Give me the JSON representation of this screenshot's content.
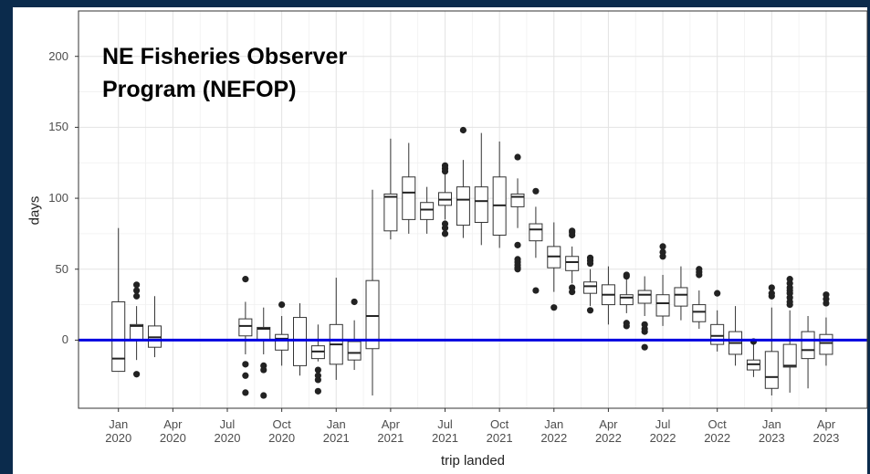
{
  "chart_data": {
    "type": "box",
    "annotation": "NE Fisheries Observer Program (NEFOP)",
    "xlabel": "trip landed",
    "ylabel": "days",
    "ylim": [
      -48,
      232
    ],
    "yticks": [
      0,
      50,
      100,
      150,
      200
    ],
    "xlim": [
      "2019-10-25",
      "2023-06-09"
    ],
    "xticks": [
      {
        "value": "2020-01",
        "label": "Jan\n2020"
      },
      {
        "value": "2020-04",
        "label": "Apr\n2020"
      },
      {
        "value": "2020-07",
        "label": "Jul\n2020"
      },
      {
        "value": "2020-10",
        "label": "Oct\n2020"
      },
      {
        "value": "2021-01",
        "label": "Jan\n2021"
      },
      {
        "value": "2021-04",
        "label": "Apr\n2021"
      },
      {
        "value": "2021-07",
        "label": "Jul\n2021"
      },
      {
        "value": "2021-10",
        "label": "Oct\n2021"
      },
      {
        "value": "2022-01",
        "label": "Jan\n2022"
      },
      {
        "value": "2022-04",
        "label": "Apr\n2022"
      },
      {
        "value": "2022-07",
        "label": "Jul\n2022"
      },
      {
        "value": "2022-10",
        "label": "Oct\n2022"
      },
      {
        "value": "2023-01",
        "label": "Jan\n2023"
      },
      {
        "value": "2023-04",
        "label": "Apr\n2023"
      }
    ],
    "grid": true,
    "hline": 0,
    "hline_color": "#0000e0",
    "boxes": [
      {
        "x": "2020-01",
        "low": -22,
        "q1": -22,
        "median": -13,
        "q3": 27,
        "high": 79,
        "outliers": []
      },
      {
        "x": "2020-02",
        "low": -14,
        "q1": 0,
        "median": 10,
        "q3": 11,
        "high": 24,
        "outliers": [
          39,
          35,
          31,
          -24
        ]
      },
      {
        "x": "2020-03",
        "low": -12,
        "q1": -5,
        "median": 2,
        "q3": 10,
        "high": 31,
        "outliers": []
      },
      {
        "x": "2020-08",
        "low": -10,
        "q1": 3,
        "median": 10,
        "q3": 15,
        "high": 27,
        "outliers": [
          43,
          -17,
          -25,
          -37
        ]
      },
      {
        "x": "2020-09",
        "low": -10,
        "q1": 0,
        "median": 8,
        "q3": 9,
        "high": 23,
        "outliers": [
          -18,
          -21,
          -39
        ]
      },
      {
        "x": "2020-10",
        "low": -18,
        "q1": -7,
        "median": 1,
        "q3": 4,
        "high": 17,
        "outliers": [
          25
        ]
      },
      {
        "x": "2020-11",
        "low": -25,
        "q1": -18,
        "median": 0,
        "q3": 16,
        "high": 26,
        "outliers": []
      },
      {
        "x": "2020-12",
        "low": -15,
        "q1": -13,
        "median": -8,
        "q3": -4,
        "high": 11,
        "outliers": [
          -21,
          -25,
          -28,
          -36
        ]
      },
      {
        "x": "2021-01",
        "low": -28,
        "q1": -17,
        "median": -3,
        "q3": 11,
        "high": 44,
        "outliers": []
      },
      {
        "x": "2021-02",
        "low": -21,
        "q1": -14,
        "median": -9,
        "q3": -1,
        "high": 14,
        "outliers": [
          27
        ]
      },
      {
        "x": "2021-03",
        "low": -39,
        "q1": -6,
        "median": 17,
        "q3": 42,
        "high": 106,
        "outliers": []
      },
      {
        "x": "2021-04",
        "low": 71,
        "q1": 77,
        "median": 101,
        "q3": 103,
        "high": 142,
        "outliers": []
      },
      {
        "x": "2021-05",
        "low": 75,
        "q1": 85,
        "median": 104,
        "q3": 115,
        "high": 139,
        "outliers": []
      },
      {
        "x": "2021-06",
        "low": 75,
        "q1": 85,
        "median": 92,
        "q3": 97,
        "high": 108,
        "outliers": []
      },
      {
        "x": "2021-07",
        "low": 85,
        "q1": 95,
        "median": 99,
        "q3": 104,
        "high": 117,
        "outliers": [
          123,
          121,
          119,
          82,
          79,
          75
        ]
      },
      {
        "x": "2021-08",
        "low": 72,
        "q1": 81,
        "median": 99,
        "q3": 108,
        "high": 127,
        "outliers": [
          148
        ]
      },
      {
        "x": "2021-09",
        "low": 67,
        "q1": 83,
        "median": 98,
        "q3": 108,
        "high": 146,
        "outliers": []
      },
      {
        "x": "2021-10",
        "low": 65,
        "q1": 74,
        "median": 95,
        "q3": 115,
        "high": 140,
        "outliers": []
      },
      {
        "x": "2021-11",
        "low": 79,
        "q1": 94,
        "median": 101,
        "q3": 103,
        "high": 114,
        "outliers": [
          129,
          67,
          57,
          55,
          53,
          51,
          50
        ]
      },
      {
        "x": "2021-12",
        "low": 58,
        "q1": 70,
        "median": 78,
        "q3": 82,
        "high": 94,
        "outliers": [
          105,
          35
        ]
      },
      {
        "x": "2022-01",
        "low": 34,
        "q1": 51,
        "median": 59,
        "q3": 66,
        "high": 83,
        "outliers": [
          23
        ]
      },
      {
        "x": "2022-02",
        "low": 40,
        "q1": 49,
        "median": 55,
        "q3": 59,
        "high": 66,
        "outliers": [
          77,
          76,
          74,
          37,
          34
        ]
      },
      {
        "x": "2022-03",
        "low": 24,
        "q1": 33,
        "median": 38,
        "q3": 41,
        "high": 50,
        "outliers": [
          58,
          56,
          54,
          21
        ]
      },
      {
        "x": "2022-04",
        "low": 11,
        "q1": 25,
        "median": 32,
        "q3": 39,
        "high": 52,
        "outliers": []
      },
      {
        "x": "2022-05",
        "low": 19,
        "q1": 25,
        "median": 30,
        "q3": 32,
        "high": 43,
        "outliers": [
          46,
          45,
          12,
          10
        ]
      },
      {
        "x": "2022-06",
        "low": 17,
        "q1": 26,
        "median": 32,
        "q3": 35,
        "high": 45,
        "outliers": [
          11,
          8,
          6,
          -5
        ]
      },
      {
        "x": "2022-07",
        "low": 10,
        "q1": 17,
        "median": 26,
        "q3": 32,
        "high": 46,
        "outliers": [
          66,
          62,
          59
        ]
      },
      {
        "x": "2022-08",
        "low": 14,
        "q1": 24,
        "median": 32,
        "q3": 37,
        "high": 52,
        "outliers": []
      },
      {
        "x": "2022-09",
        "low": 8,
        "q1": 13,
        "median": 20,
        "q3": 25,
        "high": 35,
        "outliers": [
          50,
          48,
          46
        ]
      },
      {
        "x": "2022-10",
        "low": -8,
        "q1": -3,
        "median": 3,
        "q3": 11,
        "high": 21,
        "outliers": [
          33
        ]
      },
      {
        "x": "2022-11",
        "low": -18,
        "q1": -10,
        "median": -2,
        "q3": 6,
        "high": 24,
        "outliers": []
      },
      {
        "x": "2022-12",
        "low": -26,
        "q1": -21,
        "median": -17,
        "q3": -14,
        "high": -3,
        "outliers": [
          -1
        ]
      },
      {
        "x": "2023-01",
        "low": -39,
        "q1": -34,
        "median": -26,
        "q3": -8,
        "high": 23,
        "outliers": [
          37,
          33,
          31
        ]
      },
      {
        "x": "2023-02",
        "low": -37,
        "q1": -19,
        "median": -18,
        "q3": -3,
        "high": 21,
        "outliers": [
          43,
          40,
          37,
          35,
          33,
          30,
          27,
          25
        ]
      },
      {
        "x": "2023-03",
        "low": -34,
        "q1": -13,
        "median": -7,
        "q3": 6,
        "high": 17,
        "outliers": []
      },
      {
        "x": "2023-04",
        "low": -18,
        "q1": -10,
        "median": -2,
        "q3": 4,
        "high": 16,
        "outliers": [
          32,
          29,
          26
        ]
      }
    ]
  }
}
